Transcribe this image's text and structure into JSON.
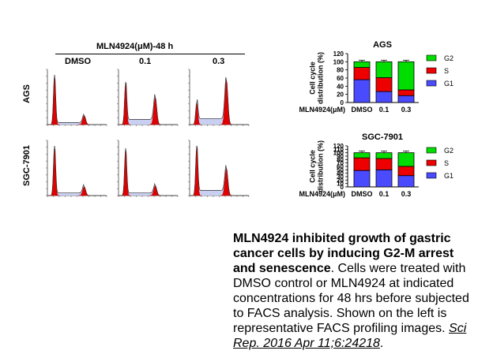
{
  "facs": {
    "treatment_label": "MLN4924(μM)-48 h",
    "columns": [
      "DMSO",
      "0.1",
      "0.3"
    ],
    "rows": [
      "AGS",
      "SGC-7901"
    ],
    "profiles": [
      [
        {
          "g1": 1.0,
          "g2": 0.18,
          "s": 0.12
        },
        {
          "g1": 0.85,
          "g2": 0.55,
          "s": 0.3
        },
        {
          "g1": 0.45,
          "g2": 0.9,
          "s": 0.35
        }
      ],
      [
        {
          "g1": 1.0,
          "g2": 0.18,
          "s": 0.15
        },
        {
          "g1": 0.95,
          "g2": 0.2,
          "s": 0.15
        },
        {
          "g1": 1.0,
          "g2": 0.55,
          "s": 0.3
        }
      ]
    ]
  },
  "chart_data": [
    {
      "type": "bar",
      "stacked": true,
      "title": "AGS",
      "ylabel": "Cell cycle distribution (%)",
      "xlabel": "MLN4924(μM)",
      "categories": [
        "DMSO",
        "0.1",
        "0.3"
      ],
      "ylim": [
        0,
        120
      ],
      "yticks": [
        0,
        20,
        40,
        60,
        80,
        100,
        120
      ],
      "series": [
        {
          "name": "G1",
          "color": "#4a4aff",
          "values": [
            56,
            27,
            17
          ]
        },
        {
          "name": "S",
          "color": "#ee0000",
          "values": [
            30,
            34,
            14
          ]
        },
        {
          "name": "G2",
          "color": "#00dd00",
          "values": [
            14,
            39,
            69
          ]
        }
      ],
      "legend": "right"
    },
    {
      "type": "bar",
      "stacked": true,
      "title": "SGC-7901",
      "ylabel": "Cell cycle distribution (%)",
      "xlabel": "MLN4924(μM)",
      "categories": [
        "DMSO",
        "0.1",
        "0.3"
      ],
      "ylim": [
        0,
        120
      ],
      "yticks": [
        0,
        10,
        20,
        30,
        40,
        50,
        60,
        70,
        80,
        90,
        100,
        110,
        120
      ],
      "series": [
        {
          "name": "G1",
          "color": "#4a4aff",
          "values": [
            48,
            50,
            33
          ]
        },
        {
          "name": "S",
          "color": "#ee0000",
          "values": [
            37,
            33,
            27
          ]
        },
        {
          "name": "G2",
          "color": "#00dd00",
          "values": [
            15,
            17,
            40
          ]
        }
      ],
      "legend": "right"
    }
  ],
  "caption": {
    "bold": "MLN4924 inhibited growth of gastric cancer cells by inducing G2-M arrest and senescence",
    "text": ". Cells were treated with DMSO control or MLN4924 at indicated concentrations for 48 hrs before subjected to FACS analysis. Shown on the left is representative FACS profiling images. ",
    "citation": "Sci Rep. 2016 Apr 11;6:24218",
    "end": "."
  }
}
